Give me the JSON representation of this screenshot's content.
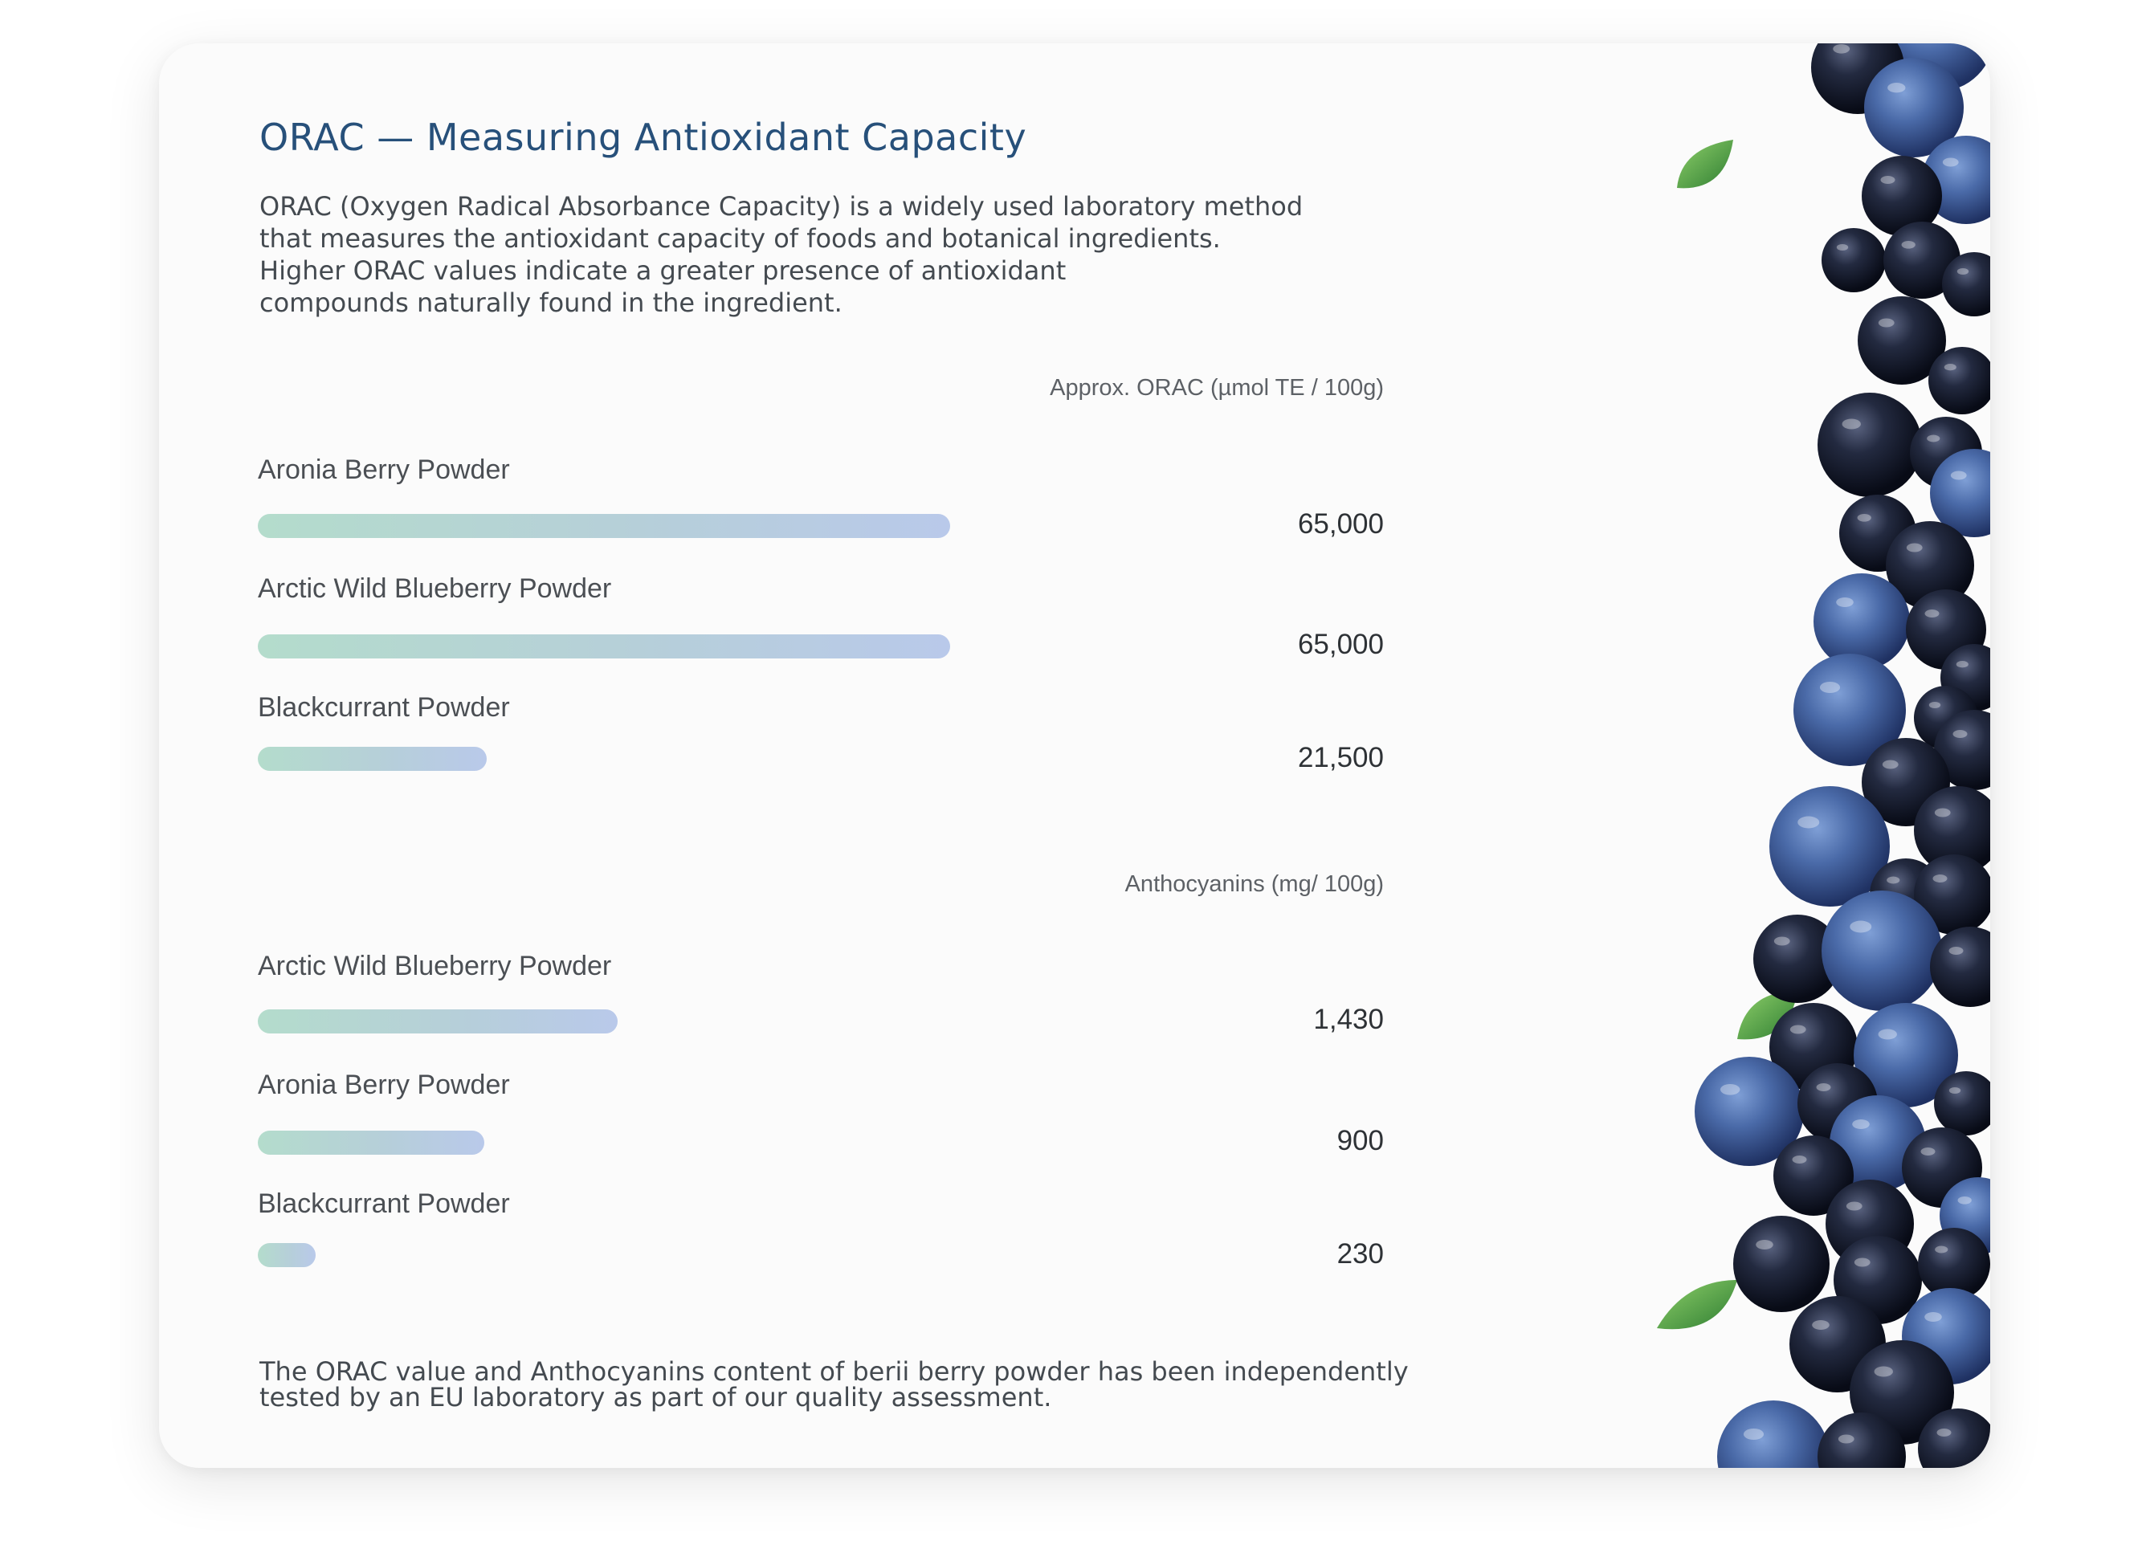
{
  "title": "ORAC — Measuring Antioxidant Capacity",
  "intro_lines": [
    "ORAC (Oxygen Radical Absorbance Capacity) is a widely used laboratory method",
    "that measures the antioxidant capacity of foods and botanical ingredients.",
    "Higher ORAC values indicate a greater presence of antioxidant",
    "compounds naturally found in the ingredient."
  ],
  "footnote_lines": [
    "The ORAC value and Anthocyanins content of berii berry powder has been independently",
    "tested by an EU laboratory as part of our quality assessment."
  ],
  "chart_data": [
    {
      "type": "bar",
      "orientation": "horizontal",
      "title": "Approx. ORAC (µmol TE / 100g)",
      "categories": [
        "Aronia Berry Powder",
        "Arctic Wild Blueberry Powder",
        "Blackcurrant Powder"
      ],
      "values": [
        65000,
        65000,
        21500
      ],
      "value_labels": [
        "65,000",
        "65,000",
        "21,500"
      ],
      "xlim": [
        0,
        85000
      ],
      "grid": false,
      "legend": "none"
    },
    {
      "type": "bar",
      "orientation": "horizontal",
      "title": "Anthocyanins (mg/ 100g)",
      "categories": [
        "Arctic Wild Blueberry Powder",
        "Aronia Berry Powder",
        "Blackcurrant Powder"
      ],
      "values": [
        1430,
        900,
        230
      ],
      "value_labels": [
        "1,430",
        "900",
        "230"
      ],
      "xlim": [
        0,
        3600
      ],
      "grid": false,
      "legend": "none"
    }
  ],
  "colors": {
    "title": "#27507a",
    "bar_start": "#b4dccc",
    "bar_end": "#b9c9ea",
    "card_background": "#fbfbfb"
  },
  "image_content": "blueberries and blackcurrants with green leaves"
}
